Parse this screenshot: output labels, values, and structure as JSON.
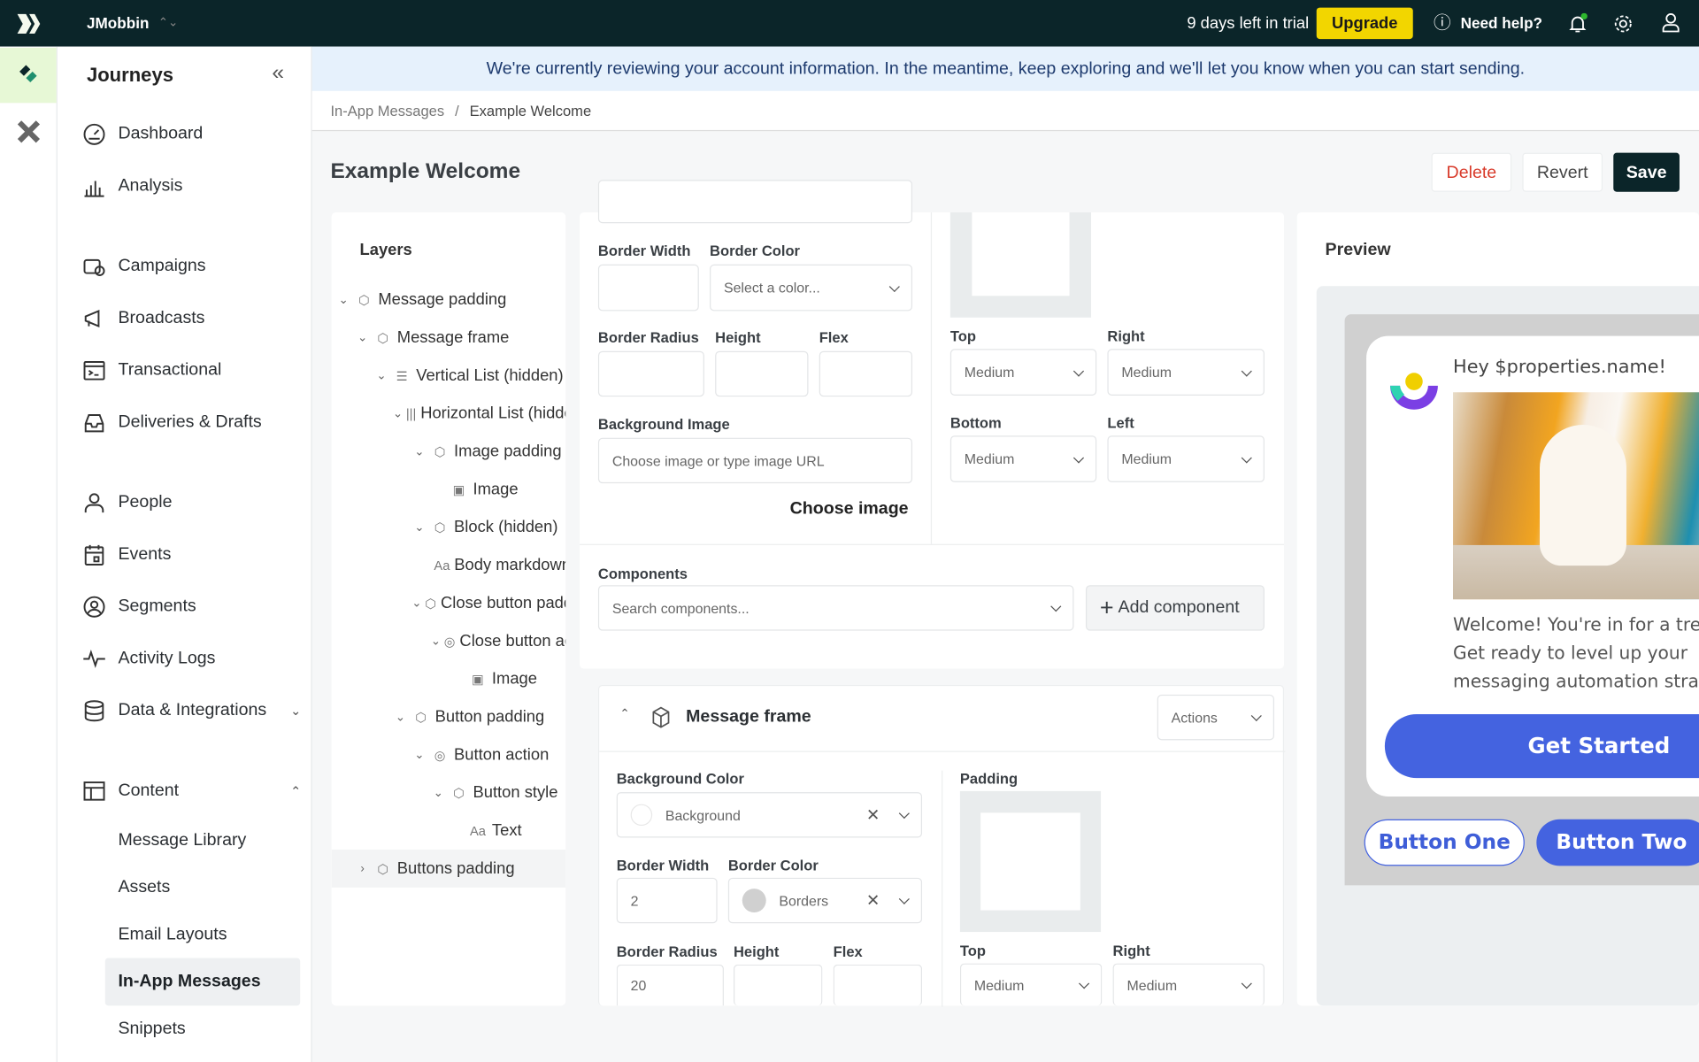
{
  "topbar": {
    "workspace": "JMobbin",
    "trial": "9 days left in trial",
    "upgrade": "Upgrade",
    "help": "Need help?"
  },
  "sidebar": {
    "title": "Journeys",
    "items": [
      {
        "label": "Dashboard",
        "icon": "gauge"
      },
      {
        "label": "Analysis",
        "icon": "bar-chart"
      },
      {
        "label": "Campaigns",
        "icon": "campaign"
      },
      {
        "label": "Broadcasts",
        "icon": "megaphone"
      },
      {
        "label": "Transactional",
        "icon": "terminal"
      },
      {
        "label": "Deliveries & Drafts",
        "icon": "inbox"
      },
      {
        "label": "People",
        "icon": "person"
      },
      {
        "label": "Events",
        "icon": "calendar"
      },
      {
        "label": "Segments",
        "icon": "segment"
      },
      {
        "label": "Activity Logs",
        "icon": "activity"
      },
      {
        "label": "Data & Integrations",
        "icon": "database"
      },
      {
        "label": "Content",
        "icon": "layout"
      }
    ],
    "content_sub": [
      "Message Library",
      "Assets",
      "Email Layouts",
      "In-App Messages",
      "Snippets"
    ],
    "active": "In-App Messages"
  },
  "banner": "We're currently reviewing your account information. In the meantime, keep exploring and we'll let you know when you can start sending.",
  "breadcrumb": {
    "parent": "In-App Messages",
    "sep": "/",
    "current": "Example Welcome"
  },
  "page": {
    "title": "Example Welcome",
    "delete": "Delete",
    "revert": "Revert",
    "save": "Save"
  },
  "layers": {
    "title": "Layers",
    "items": [
      {
        "label": "Message padding",
        "level": 0,
        "icon": "cube",
        "toggle": "expanded"
      },
      {
        "label": "Message frame",
        "level": 1,
        "icon": "cube",
        "toggle": "expanded"
      },
      {
        "label": "Vertical List (hidden)",
        "level": 2,
        "icon": "list",
        "toggle": "expanded"
      },
      {
        "label": "Horizontal List (hidden)",
        "level": 3,
        "icon": "columns",
        "toggle": "expanded"
      },
      {
        "label": "Image padding",
        "level": 4,
        "icon": "cube",
        "toggle": "expanded"
      },
      {
        "label": "Image",
        "level": 5,
        "icon": "image",
        "toggle": "none"
      },
      {
        "label": "Block (hidden)",
        "level": 4,
        "icon": "cube",
        "toggle": "expanded"
      },
      {
        "label": "Body markdown",
        "level": 5,
        "icon": "text",
        "toggle": "none"
      },
      {
        "label": "Close button padding",
        "level": 4,
        "icon": "cube",
        "toggle": "expanded"
      },
      {
        "label": "Close button action",
        "level": 5,
        "icon": "click",
        "toggle": "expanded"
      },
      {
        "label": "Image",
        "level": 6,
        "icon": "image",
        "toggle": "none"
      },
      {
        "label": "Button padding",
        "level": 3,
        "icon": "cube",
        "toggle": "expanded"
      },
      {
        "label": "Button action",
        "level": 4,
        "icon": "click",
        "toggle": "expanded"
      },
      {
        "label": "Button style",
        "level": 5,
        "icon": "cube",
        "toggle": "expanded"
      },
      {
        "label": "Text",
        "level": 6,
        "icon": "text",
        "toggle": "none"
      },
      {
        "label": "Buttons padding",
        "level": 1,
        "icon": "cube",
        "toggle": "collapsed"
      }
    ]
  },
  "upper": {
    "border_width": "Border Width",
    "border_color": "Border Color",
    "border_color_placeholder": "Select a color...",
    "border_radius": "Border Radius",
    "height": "Height",
    "flex": "Flex",
    "bg_image": "Background Image",
    "bg_image_placeholder": "Choose image or type image URL",
    "choose_image": "Choose image",
    "top": "Top",
    "right": "Right",
    "bottom": "Bottom",
    "left": "Left",
    "medium": "Medium",
    "components": "Components",
    "components_placeholder": "Search components...",
    "add_component": "Add component"
  },
  "frame": {
    "title": "Message frame",
    "actions": "Actions",
    "bg_color": "Background Color",
    "bg_value": "Background",
    "border_width": "Border Width",
    "border_width_value": "2",
    "border_color": "Border Color",
    "border_color_value": "Borders",
    "border_radius": "Border Radius",
    "border_radius_value": "20",
    "height": "Height",
    "flex": "Flex",
    "padding": "Padding",
    "top": "Top",
    "right": "Right",
    "medium": "Medium",
    "swatch_border": "#d0d0d0"
  },
  "preview": {
    "title": "Preview",
    "greeting": "Hey $properties.name!",
    "body": [
      "Welcome! You're in for a treat.",
      "Get ready to level up your",
      "messaging automation strategy."
    ],
    "primary": "Get Started",
    "button_one": "Button One",
    "button_two": "Button Two",
    "accent": "#4463e0"
  }
}
